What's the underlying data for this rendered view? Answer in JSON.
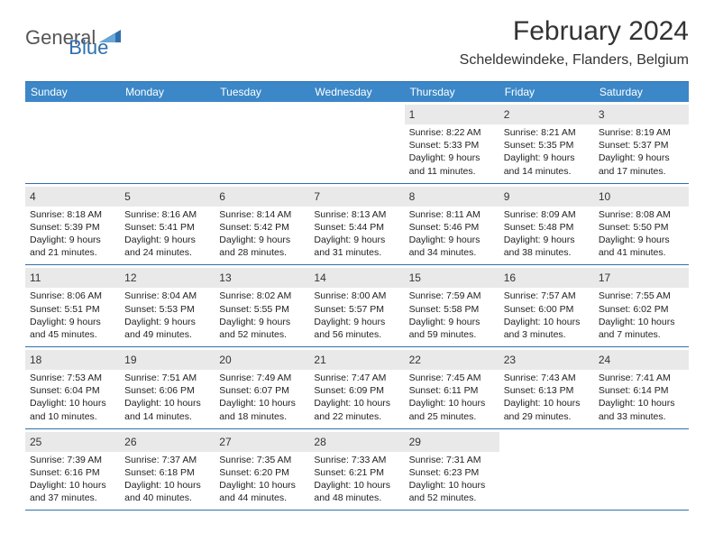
{
  "logo": {
    "general": "General",
    "blue": "Blue"
  },
  "title": "February 2024",
  "location": "Scheldewindeke, Flanders, Belgium",
  "colors": {
    "header_bg": "#3b87c8",
    "border": "#2f6fad",
    "daynum_bg": "#e9e9e9",
    "text": "#222222"
  },
  "weekdays": [
    "Sunday",
    "Monday",
    "Tuesday",
    "Wednesday",
    "Thursday",
    "Friday",
    "Saturday"
  ],
  "weeks": [
    [
      {
        "empty": true
      },
      {
        "empty": true
      },
      {
        "empty": true
      },
      {
        "empty": true
      },
      {
        "num": "1",
        "sunrise": "Sunrise: 8:22 AM",
        "sunset": "Sunset: 5:33 PM",
        "day1": "Daylight: 9 hours",
        "day2": "and 11 minutes."
      },
      {
        "num": "2",
        "sunrise": "Sunrise: 8:21 AM",
        "sunset": "Sunset: 5:35 PM",
        "day1": "Daylight: 9 hours",
        "day2": "and 14 minutes."
      },
      {
        "num": "3",
        "sunrise": "Sunrise: 8:19 AM",
        "sunset": "Sunset: 5:37 PM",
        "day1": "Daylight: 9 hours",
        "day2": "and 17 minutes."
      }
    ],
    [
      {
        "num": "4",
        "sunrise": "Sunrise: 8:18 AM",
        "sunset": "Sunset: 5:39 PM",
        "day1": "Daylight: 9 hours",
        "day2": "and 21 minutes."
      },
      {
        "num": "5",
        "sunrise": "Sunrise: 8:16 AM",
        "sunset": "Sunset: 5:41 PM",
        "day1": "Daylight: 9 hours",
        "day2": "and 24 minutes."
      },
      {
        "num": "6",
        "sunrise": "Sunrise: 8:14 AM",
        "sunset": "Sunset: 5:42 PM",
        "day1": "Daylight: 9 hours",
        "day2": "and 28 minutes."
      },
      {
        "num": "7",
        "sunrise": "Sunrise: 8:13 AM",
        "sunset": "Sunset: 5:44 PM",
        "day1": "Daylight: 9 hours",
        "day2": "and 31 minutes."
      },
      {
        "num": "8",
        "sunrise": "Sunrise: 8:11 AM",
        "sunset": "Sunset: 5:46 PM",
        "day1": "Daylight: 9 hours",
        "day2": "and 34 minutes."
      },
      {
        "num": "9",
        "sunrise": "Sunrise: 8:09 AM",
        "sunset": "Sunset: 5:48 PM",
        "day1": "Daylight: 9 hours",
        "day2": "and 38 minutes."
      },
      {
        "num": "10",
        "sunrise": "Sunrise: 8:08 AM",
        "sunset": "Sunset: 5:50 PM",
        "day1": "Daylight: 9 hours",
        "day2": "and 41 minutes."
      }
    ],
    [
      {
        "num": "11",
        "sunrise": "Sunrise: 8:06 AM",
        "sunset": "Sunset: 5:51 PM",
        "day1": "Daylight: 9 hours",
        "day2": "and 45 minutes."
      },
      {
        "num": "12",
        "sunrise": "Sunrise: 8:04 AM",
        "sunset": "Sunset: 5:53 PM",
        "day1": "Daylight: 9 hours",
        "day2": "and 49 minutes."
      },
      {
        "num": "13",
        "sunrise": "Sunrise: 8:02 AM",
        "sunset": "Sunset: 5:55 PM",
        "day1": "Daylight: 9 hours",
        "day2": "and 52 minutes."
      },
      {
        "num": "14",
        "sunrise": "Sunrise: 8:00 AM",
        "sunset": "Sunset: 5:57 PM",
        "day1": "Daylight: 9 hours",
        "day2": "and 56 minutes."
      },
      {
        "num": "15",
        "sunrise": "Sunrise: 7:59 AM",
        "sunset": "Sunset: 5:58 PM",
        "day1": "Daylight: 9 hours",
        "day2": "and 59 minutes."
      },
      {
        "num": "16",
        "sunrise": "Sunrise: 7:57 AM",
        "sunset": "Sunset: 6:00 PM",
        "day1": "Daylight: 10 hours",
        "day2": "and 3 minutes."
      },
      {
        "num": "17",
        "sunrise": "Sunrise: 7:55 AM",
        "sunset": "Sunset: 6:02 PM",
        "day1": "Daylight: 10 hours",
        "day2": "and 7 minutes."
      }
    ],
    [
      {
        "num": "18",
        "sunrise": "Sunrise: 7:53 AM",
        "sunset": "Sunset: 6:04 PM",
        "day1": "Daylight: 10 hours",
        "day2": "and 10 minutes."
      },
      {
        "num": "19",
        "sunrise": "Sunrise: 7:51 AM",
        "sunset": "Sunset: 6:06 PM",
        "day1": "Daylight: 10 hours",
        "day2": "and 14 minutes."
      },
      {
        "num": "20",
        "sunrise": "Sunrise: 7:49 AM",
        "sunset": "Sunset: 6:07 PM",
        "day1": "Daylight: 10 hours",
        "day2": "and 18 minutes."
      },
      {
        "num": "21",
        "sunrise": "Sunrise: 7:47 AM",
        "sunset": "Sunset: 6:09 PM",
        "day1": "Daylight: 10 hours",
        "day2": "and 22 minutes."
      },
      {
        "num": "22",
        "sunrise": "Sunrise: 7:45 AM",
        "sunset": "Sunset: 6:11 PM",
        "day1": "Daylight: 10 hours",
        "day2": "and 25 minutes."
      },
      {
        "num": "23",
        "sunrise": "Sunrise: 7:43 AM",
        "sunset": "Sunset: 6:13 PM",
        "day1": "Daylight: 10 hours",
        "day2": "and 29 minutes."
      },
      {
        "num": "24",
        "sunrise": "Sunrise: 7:41 AM",
        "sunset": "Sunset: 6:14 PM",
        "day1": "Daylight: 10 hours",
        "day2": "and 33 minutes."
      }
    ],
    [
      {
        "num": "25",
        "sunrise": "Sunrise: 7:39 AM",
        "sunset": "Sunset: 6:16 PM",
        "day1": "Daylight: 10 hours",
        "day2": "and 37 minutes."
      },
      {
        "num": "26",
        "sunrise": "Sunrise: 7:37 AM",
        "sunset": "Sunset: 6:18 PM",
        "day1": "Daylight: 10 hours",
        "day2": "and 40 minutes."
      },
      {
        "num": "27",
        "sunrise": "Sunrise: 7:35 AM",
        "sunset": "Sunset: 6:20 PM",
        "day1": "Daylight: 10 hours",
        "day2": "and 44 minutes."
      },
      {
        "num": "28",
        "sunrise": "Sunrise: 7:33 AM",
        "sunset": "Sunset: 6:21 PM",
        "day1": "Daylight: 10 hours",
        "day2": "and 48 minutes."
      },
      {
        "num": "29",
        "sunrise": "Sunrise: 7:31 AM",
        "sunset": "Sunset: 6:23 PM",
        "day1": "Daylight: 10 hours",
        "day2": "and 52 minutes."
      },
      {
        "empty": true
      },
      {
        "empty": true
      }
    ]
  ]
}
